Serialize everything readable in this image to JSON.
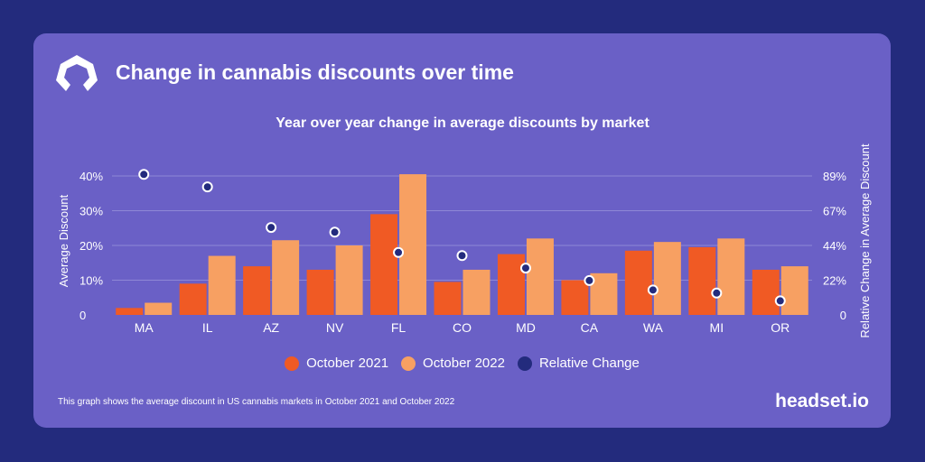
{
  "header": {
    "title": "Change in cannabis discounts over time"
  },
  "footer": {
    "note": "This graph shows the average discount in US cannabis markets in October 2021 and October 2022",
    "brand": "headset.io"
  },
  "logo": {
    "icon": "headset-logo-icon"
  },
  "colors": {
    "background": "#232b7d",
    "card": "#6a60c6",
    "oct2021": "#f05a24",
    "oct2022": "#f7a062",
    "relative": "#232b7d"
  },
  "chart_data": {
    "type": "bar",
    "title": "Year over year change in average discounts by market",
    "ylabel": "Average Discount",
    "y2label": "Relative Change in Average Discount",
    "categories": [
      "MA",
      "IL",
      "AZ",
      "NV",
      "FL",
      "CO",
      "MD",
      "CA",
      "WA",
      "MI",
      "OR"
    ],
    "ylim": [
      0,
      40
    ],
    "yticks": [
      "0",
      "10%",
      "20%",
      "30%",
      "40%"
    ],
    "y2lim": [
      0,
      89
    ],
    "y2ticks": [
      "0",
      "22%",
      "44%",
      "67%",
      "89%"
    ],
    "series": [
      {
        "name": "October 2021",
        "values": [
          2,
          9,
          14,
          13,
          29,
          9.5,
          17.5,
          10,
          18.5,
          19.5,
          13
        ]
      },
      {
        "name": "October 2022",
        "values": [
          3.5,
          17,
          21.5,
          20,
          40.5,
          13,
          22,
          12,
          21,
          22,
          14
        ]
      }
    ],
    "relative_change": {
      "name": "Relative Change",
      "values": [
        90,
        82,
        56,
        53,
        40,
        38,
        30,
        22,
        16,
        14,
        9
      ]
    },
    "grid": true,
    "legend_position": "bottom"
  }
}
